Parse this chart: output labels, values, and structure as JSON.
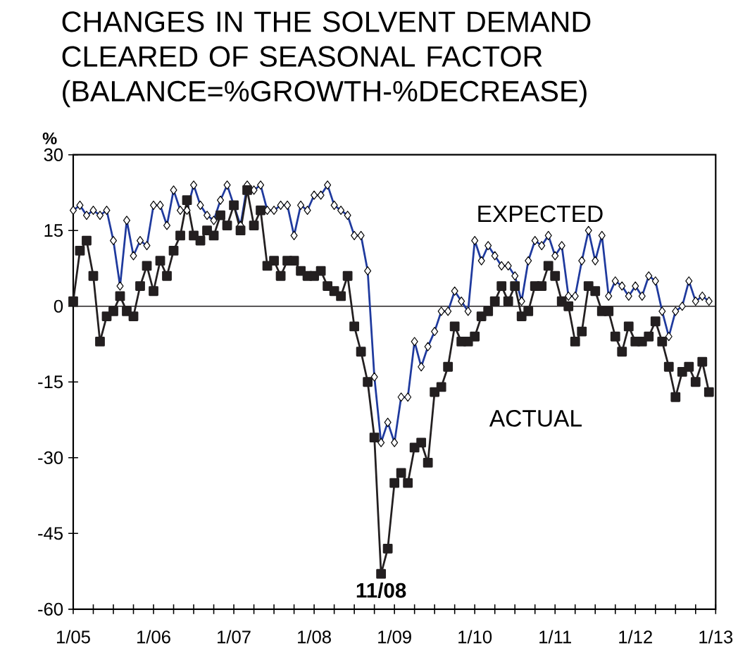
{
  "chart_data": {
    "type": "line",
    "title": "CHANGES IN THE SOLVENT DEMAND CLEARED OF SEASONAL FACTOR",
    "subtitle": "(BALANCE=%GROWTH-%DECREASE)",
    "ylabel": "%",
    "x": [
      "2005-01",
      "2005-02",
      "2005-03",
      "2005-04",
      "2005-05",
      "2005-06",
      "2005-07",
      "2005-08",
      "2005-09",
      "2005-10",
      "2005-11",
      "2005-12",
      "2006-01",
      "2006-02",
      "2006-03",
      "2006-04",
      "2006-05",
      "2006-06",
      "2006-07",
      "2006-08",
      "2006-09",
      "2006-10",
      "2006-11",
      "2006-12",
      "2007-01",
      "2007-02",
      "2007-03",
      "2007-04",
      "2007-05",
      "2007-06",
      "2007-07",
      "2007-08",
      "2007-09",
      "2007-10",
      "2007-11",
      "2007-12",
      "2008-01",
      "2008-02",
      "2008-03",
      "2008-04",
      "2008-05",
      "2008-06",
      "2008-07",
      "2008-08",
      "2008-09",
      "2008-10",
      "2008-11",
      "2008-12",
      "2009-01",
      "2009-02",
      "2009-03",
      "2009-04",
      "2009-05",
      "2009-06",
      "2009-07",
      "2009-08",
      "2009-09",
      "2009-10",
      "2009-11",
      "2009-12",
      "2010-01",
      "2010-02",
      "2010-03",
      "2010-04",
      "2010-05",
      "2010-06",
      "2010-07",
      "2010-08",
      "2010-09",
      "2010-10",
      "2010-11",
      "2010-12",
      "2011-01",
      "2011-02",
      "2011-03",
      "2011-04",
      "2011-05",
      "2011-06",
      "2011-07",
      "2011-08",
      "2011-09",
      "2011-10",
      "2011-11",
      "2011-12",
      "2012-01",
      "2012-02",
      "2012-03",
      "2012-04",
      "2012-05",
      "2012-06",
      "2012-07",
      "2012-08",
      "2012-09",
      "2012-10",
      "2012-11",
      "2012-12"
    ],
    "series": [
      {
        "name": "EXPECTED",
        "color": "#1f3a9e",
        "marker": "diamond",
        "values": [
          19,
          20,
          18,
          19,
          18,
          19,
          13,
          4,
          17,
          10,
          13,
          12,
          20,
          20,
          16,
          23,
          19,
          19,
          24,
          20,
          18,
          17,
          21,
          24,
          20,
          16,
          24,
          23,
          24,
          19,
          19,
          20,
          20,
          14,
          20,
          19,
          22,
          22,
          24,
          20,
          19,
          18,
          14,
          14,
          7,
          -14,
          -27,
          -23,
          -27,
          -18,
          -18,
          -7,
          -12,
          -8,
          -5,
          -1,
          -1,
          3,
          1,
          -1,
          13,
          9,
          12,
          10,
          8,
          8,
          6,
          1,
          9,
          13,
          12,
          14,
          10,
          12,
          2,
          2,
          9,
          15,
          9,
          14,
          2,
          5,
          4,
          2,
          4,
          2,
          6,
          5,
          -1,
          -6,
          -1,
          0,
          5,
          1,
          2,
          1
        ]
      },
      {
        "name": "ACTUAL",
        "color": "#231f20",
        "marker": "square",
        "values": [
          1,
          11,
          13,
          6,
          -7,
          -2,
          -1,
          2,
          -1,
          -2,
          4,
          8,
          3,
          9,
          6,
          11,
          14,
          21,
          14,
          13,
          15,
          14,
          18,
          16,
          20,
          15,
          23,
          16,
          19,
          8,
          9,
          6,
          9,
          9,
          7,
          6,
          6,
          7,
          4,
          3,
          2,
          6,
          -4,
          -9,
          -15,
          -26,
          -53,
          -48,
          -35,
          -33,
          -35,
          -28,
          -27,
          -31,
          -17,
          -16,
          -12,
          -4,
          -7,
          -7,
          -6,
          -2,
          -1,
          1,
          4,
          1,
          4,
          -2,
          -1,
          4,
          4,
          8,
          6,
          1,
          0,
          -7,
          -5,
          4,
          3,
          -1,
          -1,
          -6,
          -9,
          -4,
          -7,
          -7,
          -6,
          -3,
          -7,
          -12,
          -18,
          -13,
          -12,
          -15,
          -11,
          -17
        ]
      }
    ],
    "xlim": [
      "2005-01",
      "2013-01"
    ],
    "xticks": [
      {
        "value": "2005-01",
        "label": "1/05"
      },
      {
        "value": "2005-04",
        "label": null
      },
      {
        "value": "2005-07",
        "label": null
      },
      {
        "value": "2005-10",
        "label": null
      },
      {
        "value": "2006-01",
        "label": "1/06"
      },
      {
        "value": "2006-04",
        "label": null
      },
      {
        "value": "2006-07",
        "label": null
      },
      {
        "value": "2006-10",
        "label": null
      },
      {
        "value": "2007-01",
        "label": "1/07"
      },
      {
        "value": "2007-04",
        "label": null
      },
      {
        "value": "2007-07",
        "label": null
      },
      {
        "value": "2007-10",
        "label": null
      },
      {
        "value": "2008-01",
        "label": "1/08"
      },
      {
        "value": "2008-04",
        "label": null
      },
      {
        "value": "2008-07",
        "label": null
      },
      {
        "value": "2008-10",
        "label": null
      },
      {
        "value": "2009-01",
        "label": "1/09"
      },
      {
        "value": "2009-04",
        "label": null
      },
      {
        "value": "2009-07",
        "label": null
      },
      {
        "value": "2009-10",
        "label": null
      },
      {
        "value": "2010-01",
        "label": "1/10"
      },
      {
        "value": "2010-04",
        "label": null
      },
      {
        "value": "2010-07",
        "label": null
      },
      {
        "value": "2010-10",
        "label": null
      },
      {
        "value": "2011-01",
        "label": "1/11"
      },
      {
        "value": "2011-04",
        "label": null
      },
      {
        "value": "2011-07",
        "label": null
      },
      {
        "value": "2011-10",
        "label": null
      },
      {
        "value": "2012-01",
        "label": "1/12"
      },
      {
        "value": "2012-04",
        "label": null
      },
      {
        "value": "2012-07",
        "label": null
      },
      {
        "value": "2012-10",
        "label": null
      },
      {
        "value": "2013-01",
        "label": "1/13"
      }
    ],
    "ylim": [
      -60,
      30
    ],
    "yticks": [
      -60,
      -45,
      -30,
      -15,
      0,
      15,
      30
    ],
    "ref_lines": [
      {
        "axis": "y",
        "value": 0,
        "color": "#231f20"
      }
    ],
    "annotations": [
      {
        "text": "11/08",
        "x": "2008-11",
        "y": -53
      }
    ],
    "line_style": "solid"
  }
}
